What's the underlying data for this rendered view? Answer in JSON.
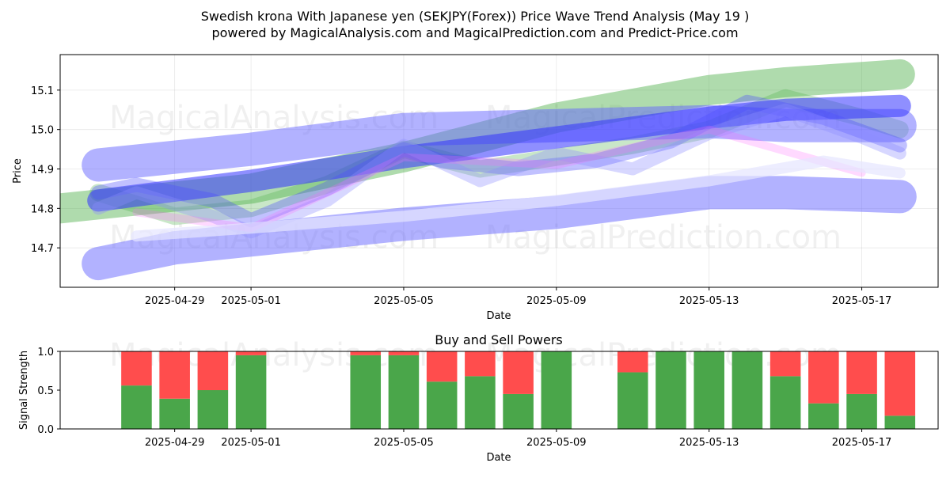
{
  "figure": {
    "title_line1": "Swedish krona With Japanese yen (SEKJPY(Forex)) Price Wave Trend Analysis (May 19 )",
    "title_line2": "powered by MagicalAnalysis.com and MagicalPrediction.com and Predict-Price.com",
    "watermarks": [
      "MagicalAnalysis.com",
      "MagicalPrediction.com"
    ]
  },
  "chart_data": [
    {
      "type": "line",
      "xlabel": "Date",
      "ylabel": "Price",
      "x_ticks": [
        "2025-04-29",
        "2025-05-01",
        "2025-05-05",
        "2025-05-09",
        "2025-05-13",
        "2025-05-17"
      ],
      "y_ticks": [
        14.7,
        14.8,
        14.9,
        15.0,
        15.1
      ],
      "xlim": [
        "2025-04-26",
        "2025-05-19"
      ],
      "ylim": [
        14.6,
        15.19
      ],
      "grid": true,
      "series": [
        {
          "color": "#4daf4a",
          "x": [
            "2025-04-26",
            "2025-04-28",
            "2025-05-01",
            "2025-05-05",
            "2025-05-09",
            "2025-05-13",
            "2025-05-15",
            "2025-05-18"
          ],
          "values": [
            14.8,
            14.82,
            14.85,
            14.93,
            15.03,
            15.1,
            15.12,
            15.14
          ]
        },
        {
          "color": "#4daf4a",
          "x": [
            "2025-04-27",
            "2025-04-29",
            "2025-05-01",
            "2025-05-03",
            "2025-05-05",
            "2025-05-07",
            "2025-05-09",
            "2025-05-11",
            "2025-05-13",
            "2025-05-15",
            "2025-05-17",
            "2025-05-18"
          ],
          "values": [
            14.84,
            14.78,
            14.8,
            14.86,
            14.95,
            14.9,
            14.93,
            14.96,
            15.0,
            15.08,
            15.03,
            15.0
          ]
        },
        {
          "color": "#6666ff",
          "x": [
            "2025-04-27",
            "2025-04-29",
            "2025-05-01",
            "2025-05-05",
            "2025-05-09",
            "2025-05-13",
            "2025-05-15",
            "2025-05-18"
          ],
          "values": [
            14.91,
            14.93,
            14.95,
            15.0,
            15.01,
            15.02,
            15.01,
            15.01
          ]
        },
        {
          "color": "#6666ff",
          "x": [
            "2025-04-27",
            "2025-04-29",
            "2025-05-01",
            "2025-05-05",
            "2025-05-09",
            "2025-05-13",
            "2025-05-15",
            "2025-05-18"
          ],
          "values": [
            14.66,
            14.7,
            14.72,
            14.76,
            14.79,
            14.84,
            14.84,
            14.83
          ]
        },
        {
          "color": "#3333ff",
          "x": [
            "2025-04-27",
            "2025-05-01",
            "2025-05-05",
            "2025-05-09",
            "2025-05-13",
            "2025-05-15",
            "2025-05-18"
          ],
          "values": [
            14.82,
            14.87,
            14.93,
            14.98,
            15.03,
            15.05,
            15.06
          ]
        },
        {
          "color": "#4d4dff",
          "x": [
            "2025-04-27",
            "2025-04-28",
            "2025-04-30",
            "2025-05-01",
            "2025-05-03",
            "2025-05-05",
            "2025-05-06",
            "2025-05-08",
            "2025-05-10",
            "2025-05-12",
            "2025-05-14",
            "2025-05-16",
            "2025-05-18"
          ],
          "values": [
            14.84,
            14.86,
            14.82,
            14.77,
            14.85,
            14.95,
            14.92,
            14.9,
            14.92,
            14.97,
            15.07,
            15.03,
            14.96
          ]
        },
        {
          "color": "#8c8cff",
          "x": [
            "2025-04-27",
            "2025-04-28",
            "2025-04-30",
            "2025-05-01",
            "2025-05-03",
            "2025-05-05",
            "2025-05-07",
            "2025-05-09",
            "2025-05-11",
            "2025-05-13",
            "2025-05-15",
            "2025-05-17",
            "2025-05-18"
          ],
          "values": [
            14.8,
            14.84,
            14.78,
            14.74,
            14.82,
            14.96,
            14.87,
            14.94,
            14.9,
            14.99,
            15.05,
            14.98,
            14.94
          ]
        },
        {
          "color": "#ff66ff",
          "x": [
            "2025-04-28",
            "2025-05-01",
            "2025-05-05",
            "2025-05-09",
            "2025-05-13",
            "2025-05-17"
          ],
          "values": [
            14.79,
            14.75,
            14.93,
            14.91,
            15.0,
            14.89
          ]
        },
        {
          "color": "#e6e6ff",
          "x": [
            "2025-04-28",
            "2025-05-01",
            "2025-05-05",
            "2025-05-09",
            "2025-05-13",
            "2025-05-16",
            "2025-05-18"
          ],
          "values": [
            14.73,
            14.75,
            14.78,
            14.82,
            14.87,
            14.92,
            14.89
          ]
        }
      ]
    },
    {
      "type": "bar",
      "title": "Buy and Sell Powers",
      "xlabel": "Date",
      "ylabel": "Signal Strength",
      "x_ticks": [
        "2025-04-29",
        "2025-05-01",
        "2025-05-05",
        "2025-05-09",
        "2025-05-13",
        "2025-05-17"
      ],
      "y_ticks": [
        0.0,
        0.5,
        1.0
      ],
      "ylim": [
        0,
        1
      ],
      "stacked": true,
      "colors": {
        "buy": "#4aa64a",
        "sell": "#ff4d4d"
      },
      "categories": [
        "2025-04-28",
        "2025-04-29",
        "2025-04-30",
        "2025-05-01",
        "2025-05-04",
        "2025-05-05",
        "2025-05-06",
        "2025-05-07",
        "2025-05-08",
        "2025-05-09",
        "2025-05-11",
        "2025-05-12",
        "2025-05-13",
        "2025-05-14",
        "2025-05-15",
        "2025-05-16",
        "2025-05-17",
        "2025-05-18"
      ],
      "series": [
        {
          "values": [
            0.56,
            0.39,
            0.5,
            0.95,
            0.95,
            0.95,
            0.61,
            0.68,
            0.45,
            1.0,
            0.73,
            1.0,
            1.0,
            1.0,
            0.68,
            0.33,
            0.45,
            0.17
          ]
        },
        {
          "values": [
            0.44,
            0.61,
            0.5,
            0.05,
            0.05,
            0.05,
            0.39,
            0.32,
            0.55,
            0.0,
            0.27,
            0.0,
            0.0,
            0.0,
            0.32,
            0.67,
            0.55,
            0.83
          ]
        }
      ]
    }
  ]
}
